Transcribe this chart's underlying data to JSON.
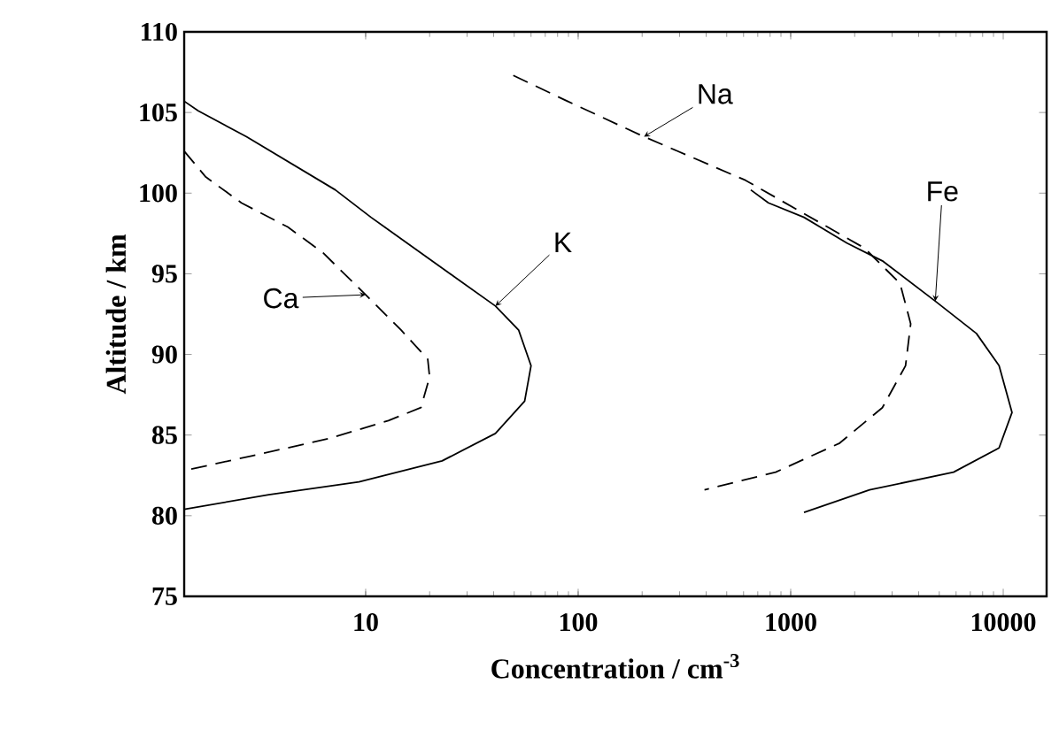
{
  "chart_data": {
    "type": "line",
    "xlabel": "Concentration / cm$^{-3}$",
    "ylabel": "Altitude / km",
    "log": "x",
    "grid": false,
    "marker": "none",
    "xlim": [
      1.4,
      16000
    ],
    "ylim": [
      75,
      110
    ],
    "xticks": [
      10,
      100,
      1000,
      10000
    ],
    "yticks": [
      75,
      80,
      85,
      90,
      95,
      100,
      105,
      110
    ],
    "series": [
      {
        "color": "#000000",
        "line_style": "solid",
        "x": [
          1.4,
          1.63,
          2.75,
          7.2,
          10.6,
          26.2,
          40.8,
          52.5,
          60,
          56,
          40.8,
          22.9,
          9.3,
          3.5,
          1.4
        ],
        "values": [
          105.7,
          105.1,
          103.5,
          100.2,
          98.5,
          94.8,
          93.0,
          91.5,
          89.3,
          87.1,
          85.1,
          83.4,
          82.1,
          81.3,
          80.4
        ]
      },
      {
        "color": "#000000",
        "line_style": "dashed",
        "x": [
          1.4,
          1.77,
          2.6,
          4.3,
          6.3,
          10,
          14.7,
          19.6,
          20,
          18.2,
          12.8,
          6.8,
          2.9,
          1.4
        ],
        "values": [
          102.6,
          101.0,
          99.4,
          97.9,
          96.3,
          93.7,
          91.5,
          89.7,
          88.6,
          86.7,
          85.9,
          84.8,
          83.7,
          82.8
        ]
      },
      {
        "color": "#000000",
        "line_style": "dashed",
        "x": [
          49.5,
          89,
          204,
          612,
          2220,
          3270,
          3670,
          3470,
          2700,
          1700,
          850,
          393
        ],
        "values": [
          107.3,
          105.7,
          103.5,
          100.8,
          96.6,
          94.4,
          91.9,
          89.3,
          86.7,
          84.5,
          82.7,
          81.6
        ]
      },
      {
        "color": "#000000",
        "line_style": "solid",
        "x": [
          649,
          785,
          1155,
          1840,
          2700,
          4790,
          7480,
          9560,
          11000,
          9560,
          5840,
          2350,
          1155
        ],
        "values": [
          100.2,
          99.4,
          98.5,
          96.9,
          95.8,
          93.3,
          91.3,
          89.3,
          86.4,
          84.2,
          82.7,
          81.6,
          80.2
        ]
      }
    ],
    "annotations": [
      {
        "text": "Na",
        "x": 204,
        "y": 103.5
      },
      {
        "text": "K",
        "x": 40.8,
        "y": 93.0
      },
      {
        "text": "Ca",
        "x": 10,
        "y": 93.7
      },
      {
        "text": "Fe",
        "x": 4790,
        "y": 93.3
      }
    ]
  }
}
